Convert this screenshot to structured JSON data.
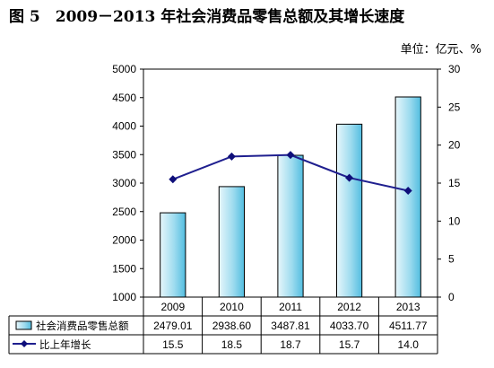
{
  "header": {
    "title": "图 5　2009－2013 年社会消费品零售总额及其增长速度",
    "unit": "单位：亿元、%"
  },
  "chart_data": {
    "type": "bar",
    "categories": [
      "2009",
      "2010",
      "2011",
      "2012",
      "2013"
    ],
    "series": [
      {
        "name": "社会消费品零售总额",
        "type": "bar",
        "axis": "left",
        "values": [
          2479.01,
          2938.6,
          3487.81,
          4033.7,
          4511.77
        ],
        "labels": [
          "2479.01",
          "2938.60",
          "3487.81",
          "4033.70",
          "4511.77"
        ]
      },
      {
        "name": "比上年增长",
        "type": "line",
        "axis": "right",
        "values": [
          15.5,
          18.5,
          18.7,
          15.7,
          14.0
        ],
        "labels": [
          "15.5",
          "18.5",
          "18.7",
          "15.7",
          "14.0"
        ]
      }
    ],
    "y_left": {
      "min": 1000,
      "max": 5000,
      "ticks": [
        1000,
        1500,
        2000,
        2500,
        3000,
        3500,
        4000,
        4500,
        5000
      ]
    },
    "y_right": {
      "min": 0,
      "max": 30,
      "ticks": [
        0,
        5,
        10,
        15,
        20,
        25,
        30
      ]
    },
    "grid": false,
    "legend": "data-table",
    "colors": {
      "bar_fill_top": "#e6f6fb",
      "bar_fill_bottom": "#52bde0",
      "bar_stroke": "#000000",
      "line": "#1f1f8f",
      "marker": "#0f0f7a"
    }
  }
}
